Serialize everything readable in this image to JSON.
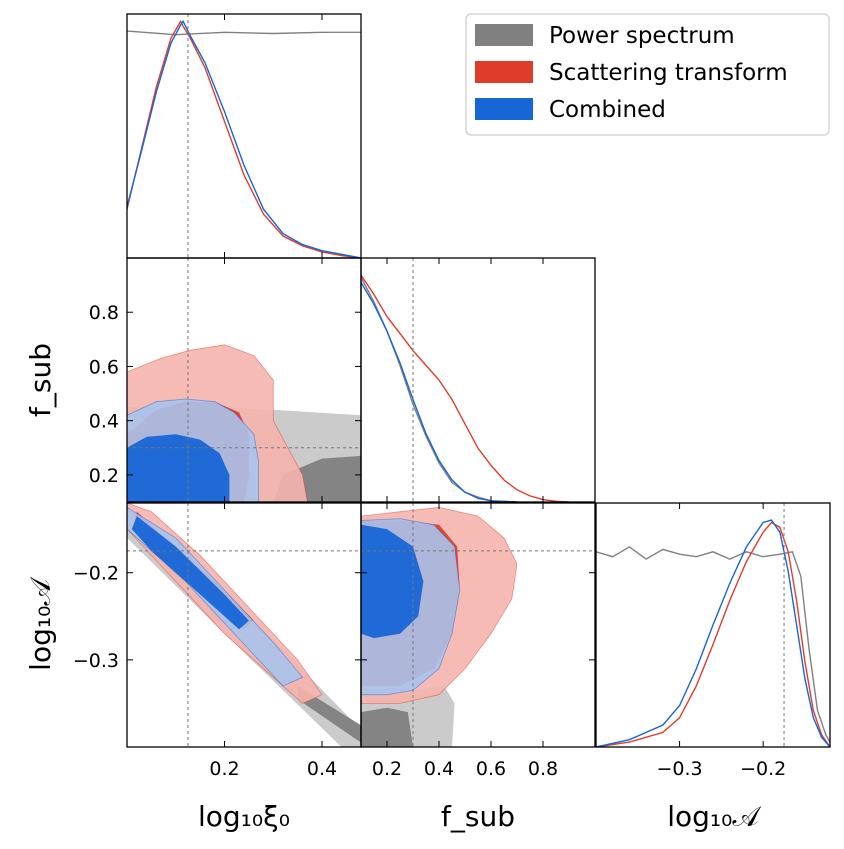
{
  "colors": {
    "power": "#808080",
    "power_light": "#c8c8c8",
    "scatter": "#e03c2c",
    "scatter_light": "#f5b4ac",
    "combined": "#1766d6",
    "combined_light": "#a9c3ec",
    "truth_line": "#777777"
  },
  "chart_data": {
    "type": "corner",
    "parameters": [
      {
        "name": "log10_xi0",
        "label": "log₁₀ξ₀",
        "range": [
          0.0,
          0.48
        ],
        "ticks": [
          "0.2",
          "0.4"
        ],
        "tick_values": [
          0.2,
          0.4
        ],
        "truth": 0.125
      },
      {
        "name": "f_sub",
        "label": "f_sub",
        "range": [
          0.1,
          1.0
        ],
        "ticks": [
          "0.2",
          "0.4",
          "0.6",
          "0.8"
        ],
        "tick_values": [
          0.2,
          0.4,
          0.6,
          0.8
        ],
        "truth": 0.3
      },
      {
        "name": "log10_A",
        "label": "log₁₀𝒜",
        "range": [
          -0.4,
          -0.12
        ],
        "ticks": [
          "−0.3",
          "−0.2"
        ],
        "tick_values": [
          -0.3,
          -0.2
        ],
        "truth": -0.175
      }
    ],
    "y_tick_labels": {
      "f_sub": [
        "0.2",
        "0.4",
        "0.6",
        "0.8"
      ],
      "log10_A": [
        "−0.3",
        "−0.2"
      ]
    },
    "legend": {
      "placement": "top-right",
      "entries": [
        {
          "key": "power",
          "label": "Power spectrum"
        },
        {
          "key": "scatter",
          "label": "Scattering transform"
        },
        {
          "key": "combined",
          "label": "Combined"
        }
      ]
    },
    "marginals": {
      "log10_xi0": {
        "power": {
          "x": [
            0.0,
            0.1,
            0.2,
            0.3,
            0.4,
            0.48
          ],
          "y": [
            0.93,
            0.915,
            0.925,
            0.92,
            0.925,
            0.925
          ]
        },
        "scatter": {
          "x": [
            0.0,
            0.03,
            0.06,
            0.09,
            0.11,
            0.115,
            0.13,
            0.16,
            0.2,
            0.24,
            0.28,
            0.32,
            0.36,
            0.4,
            0.44,
            0.48
          ],
          "y": [
            0.2,
            0.45,
            0.7,
            0.9,
            0.97,
            0.95,
            0.9,
            0.78,
            0.56,
            0.34,
            0.18,
            0.09,
            0.05,
            0.025,
            0.01,
            0.0
          ]
        },
        "combined": {
          "x": [
            0.0,
            0.03,
            0.06,
            0.09,
            0.11,
            0.115,
            0.13,
            0.16,
            0.2,
            0.24,
            0.28,
            0.32,
            0.36,
            0.4,
            0.44,
            0.48
          ],
          "y": [
            0.21,
            0.44,
            0.68,
            0.88,
            0.955,
            0.97,
            0.91,
            0.8,
            0.6,
            0.38,
            0.2,
            0.1,
            0.055,
            0.03,
            0.015,
            0.0
          ]
        }
      },
      "f_sub": {
        "power": {
          "x": [
            0.1,
            0.15,
            0.2,
            0.25,
            0.3,
            0.35,
            0.4,
            0.45,
            0.5,
            0.55,
            0.6,
            0.7
          ],
          "y": [
            0.92,
            0.82,
            0.7,
            0.56,
            0.4,
            0.27,
            0.16,
            0.08,
            0.04,
            0.02,
            0.005,
            0.0
          ]
        },
        "scatter": {
          "x": [
            0.1,
            0.15,
            0.2,
            0.25,
            0.3,
            0.35,
            0.4,
            0.45,
            0.5,
            0.55,
            0.6,
            0.65,
            0.7,
            0.75,
            0.8,
            0.85,
            0.9
          ],
          "y": [
            0.93,
            0.85,
            0.76,
            0.69,
            0.62,
            0.56,
            0.5,
            0.42,
            0.32,
            0.22,
            0.15,
            0.09,
            0.05,
            0.025,
            0.01,
            0.003,
            0.0
          ]
        },
        "combined": {
          "x": [
            0.1,
            0.15,
            0.2,
            0.25,
            0.3,
            0.35,
            0.4,
            0.45,
            0.5,
            0.55,
            0.6,
            0.7
          ],
          "y": [
            0.9,
            0.81,
            0.7,
            0.57,
            0.42,
            0.28,
            0.17,
            0.09,
            0.04,
            0.015,
            0.005,
            0.0
          ]
        }
      },
      "log10_A": {
        "power": {
          "x": [
            -0.4,
            -0.38,
            -0.36,
            -0.34,
            -0.32,
            -0.3,
            -0.28,
            -0.26,
            -0.24,
            -0.22,
            -0.2,
            -0.18,
            -0.165,
            -0.155,
            -0.145,
            -0.135,
            -0.125,
            -0.12
          ],
          "y": [
            0.8,
            0.78,
            0.82,
            0.77,
            0.81,
            0.79,
            0.78,
            0.8,
            0.77,
            0.8,
            0.78,
            0.79,
            0.8,
            0.7,
            0.4,
            0.15,
            0.05,
            0.02
          ]
        },
        "scatter": {
          "x": [
            -0.4,
            -0.36,
            -0.32,
            -0.3,
            -0.28,
            -0.26,
            -0.24,
            -0.22,
            -0.2,
            -0.19,
            -0.18,
            -0.17,
            -0.16,
            -0.15,
            -0.14,
            -0.13,
            -0.12
          ],
          "y": [
            0.0,
            0.02,
            0.06,
            0.12,
            0.25,
            0.42,
            0.6,
            0.76,
            0.88,
            0.92,
            0.9,
            0.8,
            0.6,
            0.35,
            0.15,
            0.05,
            0.0
          ]
        },
        "combined": {
          "x": [
            -0.4,
            -0.36,
            -0.32,
            -0.3,
            -0.28,
            -0.26,
            -0.24,
            -0.22,
            -0.2,
            -0.19,
            -0.18,
            -0.17,
            -0.16,
            -0.15,
            -0.14,
            -0.13,
            -0.12
          ],
          "y": [
            0.0,
            0.03,
            0.09,
            0.17,
            0.32,
            0.5,
            0.67,
            0.82,
            0.92,
            0.93,
            0.88,
            0.72,
            0.5,
            0.28,
            0.12,
            0.04,
            0.0
          ]
        }
      }
    },
    "contours": {
      "f_sub_vs_log10_xi0": {
        "power": {
          "outer": [
            [
              0.08,
              0.1
            ],
            [
              0.0,
              0.18
            ],
            [
              0.0,
              0.45
            ],
            [
              0.15,
              0.45
            ],
            [
              0.3,
              0.44
            ],
            [
              0.48,
              0.42
            ],
            [
              0.48,
              0.1
            ]
          ],
          "inner": [
            [
              0.3,
              0.1
            ],
            [
              0.32,
              0.2
            ],
            [
              0.4,
              0.26
            ],
            [
              0.48,
              0.27
            ],
            [
              0.48,
              0.1
            ]
          ]
        },
        "scatter": {
          "outer": [
            [
              0.0,
              0.1
            ],
            [
              0.0,
              0.58
            ],
            [
              0.07,
              0.63
            ],
            [
              0.13,
              0.66
            ],
            [
              0.2,
              0.68
            ],
            [
              0.26,
              0.64
            ],
            [
              0.3,
              0.55
            ],
            [
              0.3,
              0.4
            ],
            [
              0.33,
              0.3
            ],
            [
              0.36,
              0.2
            ],
            [
              0.37,
              0.1
            ]
          ],
          "inner": [
            [
              0.0,
              0.1
            ],
            [
              0.0,
              0.35
            ],
            [
              0.06,
              0.44
            ],
            [
              0.12,
              0.47
            ],
            [
              0.18,
              0.47
            ],
            [
              0.23,
              0.43
            ],
            [
              0.25,
              0.35
            ],
            [
              0.25,
              0.2
            ],
            [
              0.24,
              0.1
            ]
          ]
        },
        "combined": {
          "outer": [
            [
              0.0,
              0.1
            ],
            [
              0.0,
              0.42
            ],
            [
              0.06,
              0.47
            ],
            [
              0.12,
              0.48
            ],
            [
              0.18,
              0.47
            ],
            [
              0.22,
              0.43
            ],
            [
              0.26,
              0.35
            ],
            [
              0.27,
              0.25
            ],
            [
              0.27,
              0.1
            ]
          ],
          "inner": [
            [
              0.0,
              0.1
            ],
            [
              0.0,
              0.3
            ],
            [
              0.04,
              0.34
            ],
            [
              0.1,
              0.35
            ],
            [
              0.15,
              0.33
            ],
            [
              0.19,
              0.28
            ],
            [
              0.21,
              0.2
            ],
            [
              0.21,
              0.1
            ]
          ]
        }
      },
      "log10_A_vs_log10_xi0": {
        "power": {
          "outer": [
            [
              0.0,
              -0.13
            ],
            [
              0.2,
              -0.22
            ],
            [
              0.48,
              -0.38
            ],
            [
              0.48,
              -0.4
            ],
            [
              0.44,
              -0.4
            ],
            [
              0.2,
              -0.27
            ],
            [
              0.0,
              -0.16
            ]
          ],
          "inner": [
            [
              0.35,
              -0.33
            ],
            [
              0.48,
              -0.375
            ],
            [
              0.48,
              -0.395
            ],
            [
              0.35,
              -0.345
            ]
          ]
        },
        "scatter": {
          "outer": [
            [
              0.0,
              -0.12
            ],
            [
              0.05,
              -0.13
            ],
            [
              0.15,
              -0.18
            ],
            [
              0.25,
              -0.24
            ],
            [
              0.35,
              -0.3
            ],
            [
              0.4,
              -0.34
            ],
            [
              0.36,
              -0.35
            ],
            [
              0.28,
              -0.31
            ],
            [
              0.2,
              -0.27
            ],
            [
              0.1,
              -0.21
            ],
            [
              0.0,
              -0.15
            ]
          ],
          "inner": [
            [
              0.02,
              -0.13
            ],
            [
              0.1,
              -0.17
            ],
            [
              0.2,
              -0.22
            ],
            [
              0.26,
              -0.255
            ],
            [
              0.24,
              -0.265
            ],
            [
              0.15,
              -0.22
            ],
            [
              0.06,
              -0.18
            ],
            [
              0.01,
              -0.15
            ]
          ]
        },
        "combined": {
          "outer": [
            [
              0.0,
              -0.125
            ],
            [
              0.1,
              -0.16
            ],
            [
              0.2,
              -0.22
            ],
            [
              0.3,
              -0.28
            ],
            [
              0.36,
              -0.32
            ],
            [
              0.32,
              -0.33
            ],
            [
              0.22,
              -0.27
            ],
            [
              0.12,
              -0.21
            ],
            [
              0.0,
              -0.15
            ]
          ],
          "inner": [
            [
              0.02,
              -0.135
            ],
            [
              0.1,
              -0.17
            ],
            [
              0.2,
              -0.225
            ],
            [
              0.25,
              -0.255
            ],
            [
              0.23,
              -0.265
            ],
            [
              0.14,
              -0.22
            ],
            [
              0.05,
              -0.175
            ],
            [
              0.01,
              -0.15
            ]
          ]
        }
      },
      "log10_A_vs_f_sub": {
        "power": {
          "outer": [
            [
              0.1,
              -0.4
            ],
            [
              0.1,
              -0.34
            ],
            [
              0.3,
              -0.335
            ],
            [
              0.42,
              -0.33
            ],
            [
              0.46,
              -0.35
            ],
            [
              0.45,
              -0.4
            ]
          ],
          "inner": [
            [
              0.1,
              -0.4
            ],
            [
              0.1,
              -0.36
            ],
            [
              0.2,
              -0.355
            ],
            [
              0.28,
              -0.36
            ],
            [
              0.3,
              -0.4
            ]
          ]
        },
        "scatter": {
          "outer": [
            [
              0.1,
              -0.135
            ],
            [
              0.25,
              -0.13
            ],
            [
              0.4,
              -0.125
            ],
            [
              0.55,
              -0.135
            ],
            [
              0.65,
              -0.16
            ],
            [
              0.7,
              -0.19
            ],
            [
              0.68,
              -0.23
            ],
            [
              0.6,
              -0.27
            ],
            [
              0.5,
              -0.31
            ],
            [
              0.4,
              -0.34
            ],
            [
              0.25,
              -0.35
            ],
            [
              0.1,
              -0.35
            ]
          ],
          "inner": [
            [
              0.1,
              -0.14
            ],
            [
              0.25,
              -0.14
            ],
            [
              0.4,
              -0.145
            ],
            [
              0.47,
              -0.17
            ],
            [
              0.48,
              -0.22
            ],
            [
              0.45,
              -0.27
            ],
            [
              0.38,
              -0.31
            ],
            [
              0.25,
              -0.33
            ],
            [
              0.1,
              -0.33
            ]
          ]
        },
        "combined": {
          "outer": [
            [
              0.1,
              -0.14
            ],
            [
              0.25,
              -0.138
            ],
            [
              0.38,
              -0.145
            ],
            [
              0.46,
              -0.17
            ],
            [
              0.48,
              -0.22
            ],
            [
              0.45,
              -0.27
            ],
            [
              0.4,
              -0.31
            ],
            [
              0.3,
              -0.335
            ],
            [
              0.2,
              -0.34
            ],
            [
              0.1,
              -0.34
            ]
          ],
          "inner": [
            [
              0.1,
              -0.145
            ],
            [
              0.2,
              -0.15
            ],
            [
              0.3,
              -0.17
            ],
            [
              0.34,
              -0.21
            ],
            [
              0.32,
              -0.25
            ],
            [
              0.25,
              -0.27
            ],
            [
              0.15,
              -0.275
            ],
            [
              0.1,
              -0.27
            ]
          ]
        }
      }
    }
  }
}
